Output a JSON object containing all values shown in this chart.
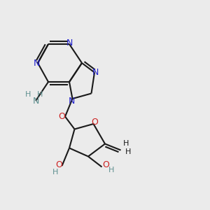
{
  "bg_color": "#ebebeb",
  "bond_color": "#1a1a1a",
  "N_color": "#2020cc",
  "O_color": "#cc2020",
  "NH_color": "#5f9090",
  "line_width": 1.5,
  "dbo": 0.12,
  "figsize": [
    3.0,
    3.0
  ],
  "dpi": 100,
  "xlim": [
    0,
    10
  ],
  "ylim": [
    0,
    10
  ]
}
